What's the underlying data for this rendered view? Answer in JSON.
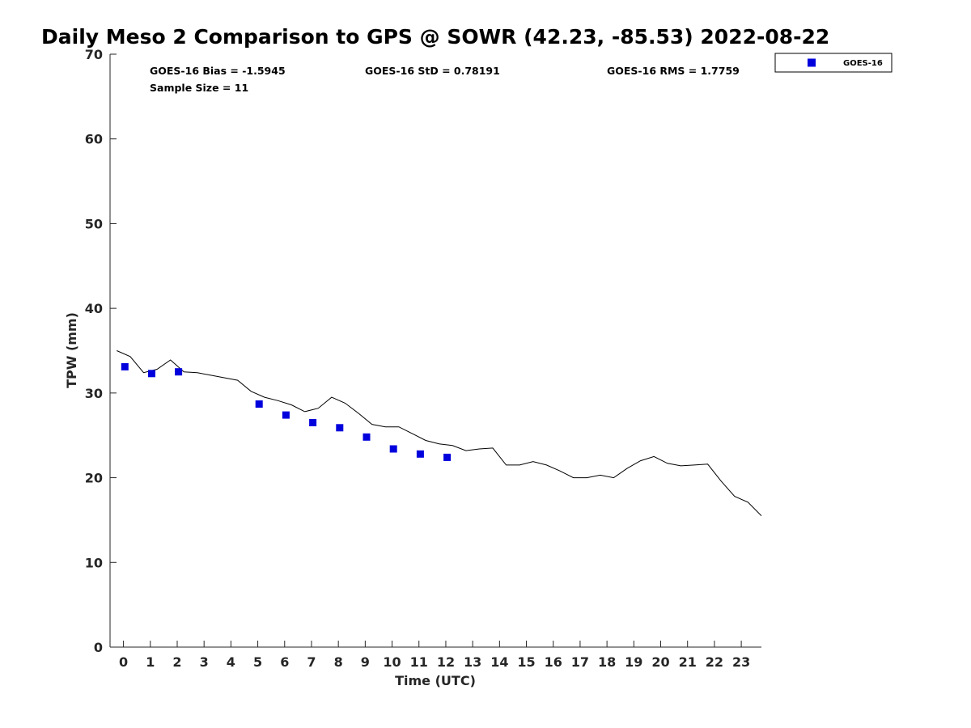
{
  "chart_data": {
    "type": "scatter",
    "title": "Daily Meso 2 Comparison to GPS @ SOWR (42.23, -85.53) 2022-08-22",
    "xlabel": "Time (UTC)",
    "ylabel": "TPW (mm)",
    "xlim": [
      -0.5,
      23.75
    ],
    "ylim": [
      0,
      70
    ],
    "x_ticks": [
      0,
      1,
      2,
      3,
      4,
      5,
      6,
      7,
      8,
      9,
      10,
      11,
      12,
      13,
      14,
      15,
      16,
      17,
      18,
      19,
      20,
      21,
      22,
      23
    ],
    "y_ticks": [
      0,
      10,
      20,
      30,
      40,
      50,
      60,
      70
    ],
    "grid": false,
    "legend_position": "top-right (outside plot)",
    "colors": {
      "goes16": "#0000dd",
      "gps_line": "#000000"
    },
    "stats": {
      "bias": "GOES-16 Bias = -1.5945",
      "std": "GOES-16 StD = 0.78191",
      "rms": "GOES-16 RMS = 1.7759",
      "sample_size": "Sample Size = 11"
    },
    "series": [
      {
        "name": "GOES-16",
        "marker": "square",
        "x": [
          0.05,
          1.05,
          2.05,
          5.05,
          6.05,
          7.05,
          8.05,
          9.05,
          10.05,
          11.05,
          12.05
        ],
        "y": [
          33.1,
          32.3,
          32.5,
          28.7,
          27.4,
          26.5,
          25.9,
          24.8,
          23.4,
          22.8,
          22.4
        ]
      },
      {
        "type": "line",
        "x": [
          -0.25,
          0.25,
          0.75,
          1.25,
          1.75,
          2.25,
          2.75,
          3.25,
          3.75,
          4.25,
          4.75,
          5.25,
          5.75,
          6.25,
          6.75,
          7.25,
          7.75,
          8.25,
          8.75,
          9.25,
          9.75,
          10.25,
          10.75,
          11.25,
          11.75,
          12.25,
          12.75,
          13.25,
          13.75,
          14.25,
          14.75,
          15.25,
          15.75,
          16.25,
          16.75,
          17.25,
          17.75,
          18.25,
          18.75,
          19.25,
          19.75,
          20.25,
          20.75,
          21.25,
          21.75,
          22.25,
          22.75,
          23.25,
          23.75
        ],
        "y": [
          35.0,
          34.3,
          32.4,
          32.8,
          33.9,
          32.5,
          32.4,
          32.1,
          31.8,
          31.5,
          30.2,
          29.5,
          29.1,
          28.6,
          27.8,
          28.2,
          29.5,
          28.8,
          27.6,
          26.3,
          26.0,
          26.0,
          25.2,
          24.4,
          24.0,
          23.8,
          23.2,
          23.4,
          23.5,
          21.5,
          21.5,
          21.9,
          21.5,
          20.8,
          20.0,
          20.0,
          20.3,
          20.0,
          21.1,
          22.0,
          22.5,
          21.7,
          21.4,
          21.5,
          21.6,
          19.6,
          17.8,
          17.1,
          15.5
        ]
      }
    ]
  }
}
